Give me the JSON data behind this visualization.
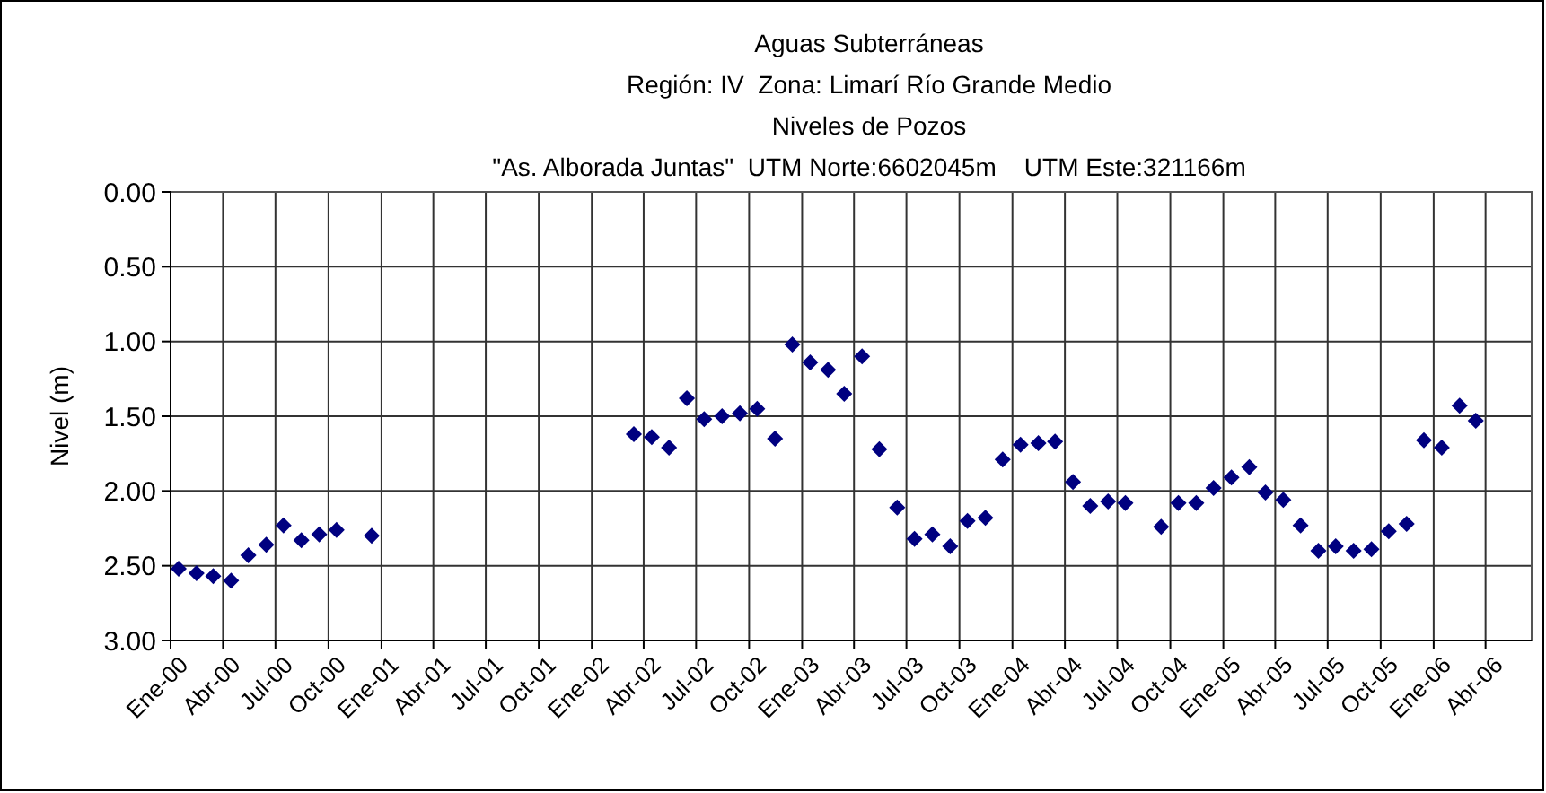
{
  "chart_data": {
    "type": "scatter",
    "title": "Aguas Subterráneas",
    "subtitle": "Región: IV  Zona: Limarí Río Grande Medio\nNiveles de Pozos\n\"As. Alborada Juntas\"  UTM Norte:6602045m    UTM Este:321166m",
    "ylabel": "Nivel (m)",
    "x": [
      "2000-01-15",
      "2000-02-15",
      "2000-03-15",
      "2000-04-15",
      "2000-05-15",
      "2000-06-15",
      "2000-07-15",
      "2000-08-15",
      "2000-09-15",
      "2000-10-15",
      "2000-12-15",
      "2002-03-15",
      "2002-04-15",
      "2002-05-15",
      "2002-06-15",
      "2002-07-15",
      "2002-08-15",
      "2002-09-15",
      "2002-10-15",
      "2002-11-15",
      "2002-12-15",
      "2003-01-15",
      "2003-02-15",
      "2003-03-15",
      "2003-04-15",
      "2003-05-15",
      "2003-06-15",
      "2003-07-15",
      "2003-08-15",
      "2003-09-15",
      "2003-10-15",
      "2003-11-15",
      "2003-12-15",
      "2004-01-15",
      "2004-02-15",
      "2004-03-15",
      "2004-04-15",
      "2004-05-15",
      "2004-06-15",
      "2004-07-15",
      "2004-09-15",
      "2004-10-15",
      "2004-11-15",
      "2004-12-15",
      "2005-01-15",
      "2005-02-15",
      "2005-03-15",
      "2005-04-15",
      "2005-05-15",
      "2005-06-15",
      "2005-07-15",
      "2005-08-15",
      "2005-09-15",
      "2005-10-15",
      "2005-11-15",
      "2005-12-15",
      "2006-01-15",
      "2006-02-15",
      "2006-03-15"
    ],
    "series": [
      {
        "color": "#000080",
        "values": [
          2.52,
          2.55,
          2.57,
          2.6,
          2.43,
          2.36,
          2.23,
          2.33,
          2.29,
          2.26,
          2.3,
          1.62,
          1.64,
          1.71,
          1.38,
          1.52,
          1.5,
          1.48,
          1.45,
          1.65,
          1.02,
          1.14,
          1.19,
          1.35,
          1.1,
          1.72,
          2.11,
          2.32,
          2.29,
          2.37,
          2.2,
          2.18,
          1.79,
          1.69,
          1.68,
          1.67,
          1.94,
          2.1,
          2.07,
          2.08,
          2.24,
          2.08,
          2.08,
          1.98,
          1.91,
          1.84,
          2.01,
          2.06,
          2.23,
          2.4,
          2.37,
          2.4,
          2.39,
          2.27,
          2.22,
          1.66,
          1.71,
          1.43,
          1.53
        ]
      }
    ],
    "ylim": [
      3,
      0
    ],
    "yticks": [
      {
        "value": 0,
        "label": "0.00"
      },
      {
        "value": 0.5,
        "label": "0.50"
      },
      {
        "value": 1,
        "label": "1.00"
      },
      {
        "value": 1.5,
        "label": "1.50"
      },
      {
        "value": 2,
        "label": "2.00"
      },
      {
        "value": 2.5,
        "label": "2.50"
      },
      {
        "value": 3,
        "label": "3.00"
      }
    ],
    "xlim": [
      "2000-01-01",
      "2006-06-20"
    ],
    "xticks": [
      {
        "value": "2000-01-01",
        "label": "Ene-00"
      },
      {
        "value": "2000-04-01",
        "label": "Abr-00"
      },
      {
        "value": "2000-07-01",
        "label": "Jul-00"
      },
      {
        "value": "2000-10-01",
        "label": "Oct-00"
      },
      {
        "value": "2001-01-01",
        "label": "Ene-01"
      },
      {
        "value": "2001-04-01",
        "label": "Abr-01"
      },
      {
        "value": "2001-07-01",
        "label": "Jul-01"
      },
      {
        "value": "2001-10-01",
        "label": "Oct-01"
      },
      {
        "value": "2002-01-01",
        "label": "Ene-02"
      },
      {
        "value": "2002-04-01",
        "label": "Abr-02"
      },
      {
        "value": "2002-07-01",
        "label": "Jul-02"
      },
      {
        "value": "2002-10-01",
        "label": "Oct-02"
      },
      {
        "value": "2003-01-01",
        "label": "Ene-03"
      },
      {
        "value": "2003-04-01",
        "label": "Abr-03"
      },
      {
        "value": "2003-07-01",
        "label": "Jul-03"
      },
      {
        "value": "2003-10-01",
        "label": "Oct-03"
      },
      {
        "value": "2004-01-01",
        "label": "Ene-04"
      },
      {
        "value": "2004-04-01",
        "label": "Abr-04"
      },
      {
        "value": "2004-07-01",
        "label": "Jul-04"
      },
      {
        "value": "2004-10-01",
        "label": "Oct-04"
      },
      {
        "value": "2005-01-01",
        "label": "Ene-05"
      },
      {
        "value": "2005-04-01",
        "label": "Abr-05"
      },
      {
        "value": "2005-07-01",
        "label": "Jul-05"
      },
      {
        "value": "2005-10-01",
        "label": "Oct-05"
      },
      {
        "value": "2006-01-01",
        "label": "Ene-06"
      },
      {
        "value": "2006-04-01",
        "label": "Abr-06"
      }
    ],
    "grid": true,
    "marker": "diamond"
  }
}
